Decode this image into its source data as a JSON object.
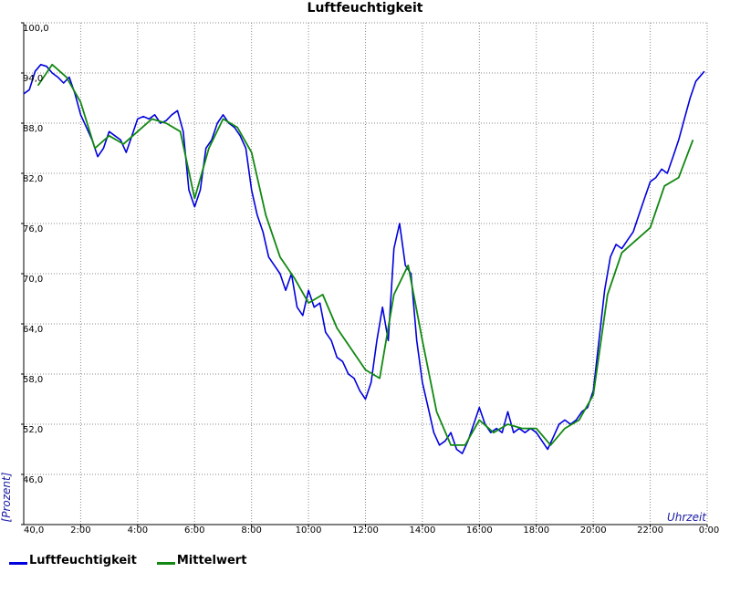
{
  "chart_data": {
    "type": "line",
    "title": "Luftfeuchtigkeit",
    "ylabel": "[Prozent]",
    "xlabel": "Uhrzeit",
    "ylim": [
      40,
      100
    ],
    "xlim": [
      0,
      24
    ],
    "grid": true,
    "legend_position": "bottom-left",
    "y_ticks": [
      "40,0",
      "46,0",
      "52,0",
      "58,0",
      "64,0",
      "70,0",
      "76,0",
      "82,0",
      "88,0",
      "94,0",
      "100,0"
    ],
    "x_ticks": [
      {
        "value": 2,
        "label": "2:00"
      },
      {
        "value": 4,
        "label": "4:00"
      },
      {
        "value": 6,
        "label": "6:00"
      },
      {
        "value": 8,
        "label": "8:00"
      },
      {
        "value": 10,
        "label": "10:00"
      },
      {
        "value": 12,
        "label": "12:00"
      },
      {
        "value": 14,
        "label": "14:00"
      },
      {
        "value": 16,
        "label": "16:00"
      },
      {
        "value": 18,
        "label": "18:00"
      },
      {
        "value": 20,
        "label": "20:00"
      },
      {
        "value": 22,
        "label": "22:00"
      },
      {
        "value": 24,
        "label": "0:00"
      }
    ],
    "series": [
      {
        "name": "Luftfeuchtigkeit",
        "color": "#0000dd",
        "x": [
          0,
          0.2,
          0.4,
          0.6,
          0.8,
          1.0,
          1.2,
          1.4,
          1.6,
          1.8,
          2.0,
          2.2,
          2.4,
          2.6,
          2.8,
          3.0,
          3.2,
          3.4,
          3.6,
          3.8,
          4.0,
          4.2,
          4.4,
          4.6,
          4.8,
          5.0,
          5.2,
          5.4,
          5.6,
          5.8,
          6.0,
          6.2,
          6.4,
          6.6,
          6.8,
          7.0,
          7.2,
          7.4,
          7.6,
          7.8,
          8.0,
          8.2,
          8.4,
          8.6,
          8.8,
          9.0,
          9.2,
          9.4,
          9.6,
          9.8,
          10.0,
          10.2,
          10.4,
          10.6,
          10.8,
          11.0,
          11.2,
          11.4,
          11.6,
          11.8,
          12.0,
          12.2,
          12.4,
          12.6,
          12.8,
          13.0,
          13.2,
          13.4,
          13.6,
          13.8,
          14.0,
          14.2,
          14.4,
          14.6,
          14.8,
          15.0,
          15.2,
          15.4,
          15.6,
          15.8,
          16.0,
          16.2,
          16.4,
          16.6,
          16.8,
          17.0,
          17.2,
          17.4,
          17.6,
          17.8,
          18.0,
          18.2,
          18.4,
          18.6,
          18.8,
          19.0,
          19.2,
          19.4,
          19.6,
          19.8,
          20.0,
          20.2,
          20.4,
          20.6,
          20.8,
          21.0,
          21.2,
          21.4,
          21.6,
          21.8,
          22.0,
          22.2,
          22.4,
          22.6,
          22.8,
          23.0,
          23.2,
          23.4,
          23.6,
          23.9
        ],
        "y": [
          91.5,
          92.0,
          94.2,
          95.0,
          94.8,
          94.0,
          93.5,
          92.8,
          93.5,
          91.5,
          89.0,
          87.5,
          86.0,
          84.0,
          85.0,
          87.0,
          86.5,
          86.0,
          84.5,
          86.5,
          88.5,
          88.8,
          88.5,
          89.0,
          88.0,
          88.3,
          89.0,
          89.5,
          87.0,
          80.0,
          78.0,
          80.0,
          85.0,
          86.0,
          88.0,
          89.0,
          88.0,
          87.5,
          86.5,
          85.0,
          80.0,
          77.0,
          75.0,
          72.0,
          71.0,
          70.0,
          68.0,
          70.0,
          66.0,
          65.0,
          68.0,
          66.0,
          66.5,
          63.0,
          62.0,
          60.0,
          59.5,
          58.0,
          57.5,
          56.0,
          55.0,
          57.0,
          62.0,
          66.0,
          62.0,
          73.0,
          76.0,
          71.0,
          70.0,
          62.0,
          57.0,
          54.0,
          51.0,
          49.5,
          50.0,
          51.0,
          49.0,
          48.5,
          50.0,
          52.0,
          54.0,
          52.0,
          51.0,
          51.5,
          51.0,
          53.5,
          51.0,
          51.5,
          51.0,
          51.5,
          51.0,
          50.0,
          49.0,
          50.5,
          52.0,
          52.5,
          52.0,
          52.5,
          53.5,
          54.0,
          56.0,
          62.0,
          68.0,
          72.0,
          73.5,
          73.0,
          74.0,
          75.0,
          77.0,
          79.0,
          81.0,
          81.5,
          82.5,
          82.0,
          84.0,
          86.0,
          88.5,
          91.0,
          93.0,
          94.2
        ]
      },
      {
        "name": "Mittelwert",
        "color": "#118811",
        "x": [
          0.5,
          1.0,
          1.5,
          2.0,
          2.5,
          3.0,
          3.5,
          4.0,
          4.5,
          5.0,
          5.5,
          6.0,
          6.5,
          7.0,
          7.5,
          8.0,
          8.5,
          9.0,
          9.5,
          10.0,
          10.5,
          11.0,
          11.5,
          12.0,
          12.5,
          13.0,
          13.5,
          14.0,
          14.5,
          15.0,
          15.5,
          16.0,
          16.5,
          17.0,
          17.5,
          18.0,
          18.5,
          19.0,
          19.5,
          20.0,
          20.5,
          21.0,
          21.5,
          22.0,
          22.5,
          23.0,
          23.5
        ],
        "y": [
          92.5,
          95.0,
          93.5,
          90.5,
          85.0,
          86.5,
          85.5,
          87.0,
          88.5,
          88.0,
          87.0,
          79.0,
          85.0,
          88.5,
          87.5,
          84.5,
          77.0,
          72.0,
          69.5,
          66.5,
          67.5,
          63.5,
          61.0,
          58.5,
          57.5,
          67.5,
          71.0,
          62.0,
          53.5,
          49.5,
          49.5,
          52.5,
          51.0,
          52.0,
          51.5,
          51.5,
          49.5,
          51.5,
          52.5,
          55.5,
          67.5,
          72.5,
          74.0,
          75.5,
          80.5,
          81.5,
          86.0
        ]
      }
    ]
  }
}
